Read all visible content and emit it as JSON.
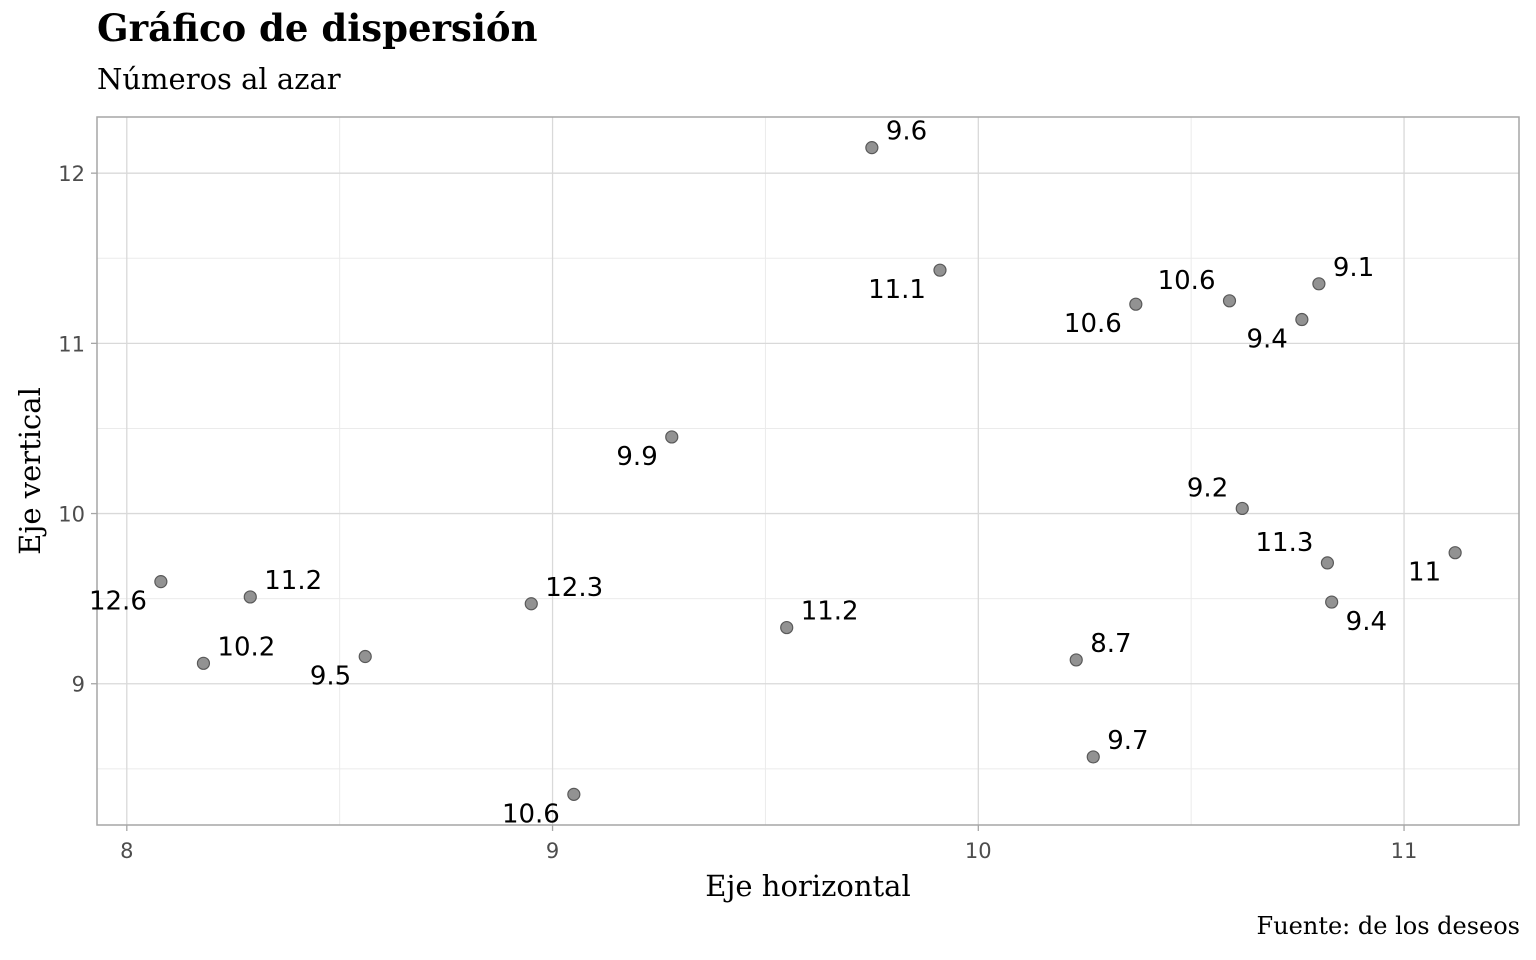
{
  "chart_data": {
    "type": "scatter",
    "title": "Gráfico de dispersión",
    "subtitle": "Números al azar",
    "caption": "Fuente: de los deseos",
    "xlabel": "Eje horizontal",
    "ylabel": "Eje vertical",
    "xlim": [
      7.93,
      11.27
    ],
    "ylim": [
      8.17,
      12.33
    ],
    "xticks": [
      8,
      9,
      10,
      11
    ],
    "yticks": [
      9,
      10,
      11,
      12
    ],
    "grid": true,
    "point_color": "#7f7f7f",
    "points": [
      {
        "x": 8.08,
        "y": 9.6,
        "label": "12.6",
        "pos": "bl"
      },
      {
        "x": 8.29,
        "y": 9.51,
        "label": "11.2",
        "pos": "tr"
      },
      {
        "x": 8.18,
        "y": 9.12,
        "label": "10.2",
        "pos": "tr"
      },
      {
        "x": 8.56,
        "y": 9.16,
        "label": "9.5",
        "pos": "bl"
      },
      {
        "x": 8.95,
        "y": 9.47,
        "label": "12.3",
        "pos": "tr"
      },
      {
        "x": 9.05,
        "y": 8.35,
        "label": "10.6",
        "pos": "bl"
      },
      {
        "x": 9.28,
        "y": 10.45,
        "label": "9.9",
        "pos": "bl"
      },
      {
        "x": 9.55,
        "y": 9.33,
        "label": "11.2",
        "pos": "tr"
      },
      {
        "x": 9.75,
        "y": 12.15,
        "label": "9.6",
        "pos": "tr"
      },
      {
        "x": 9.91,
        "y": 11.43,
        "label": "11.1",
        "pos": "bl"
      },
      {
        "x": 10.23,
        "y": 9.14,
        "label": "8.7",
        "pos": "tr"
      },
      {
        "x": 10.27,
        "y": 8.57,
        "label": "9.7",
        "pos": "tr"
      },
      {
        "x": 10.37,
        "y": 11.23,
        "label": "10.6",
        "pos": "bl"
      },
      {
        "x": 10.59,
        "y": 11.25,
        "label": "10.6",
        "pos": "tl"
      },
      {
        "x": 10.62,
        "y": 10.03,
        "label": "9.2",
        "pos": "tl"
      },
      {
        "x": 10.76,
        "y": 11.14,
        "label": "9.4",
        "pos": "bl"
      },
      {
        "x": 10.8,
        "y": 11.35,
        "label": "9.1",
        "pos": "tr"
      },
      {
        "x": 10.82,
        "y": 9.71,
        "label": "11.3",
        "pos": "tl"
      },
      {
        "x": 10.83,
        "y": 9.48,
        "label": "9.4",
        "pos": "br"
      },
      {
        "x": 11.12,
        "y": 9.77,
        "label": "11",
        "pos": "bl"
      }
    ]
  }
}
